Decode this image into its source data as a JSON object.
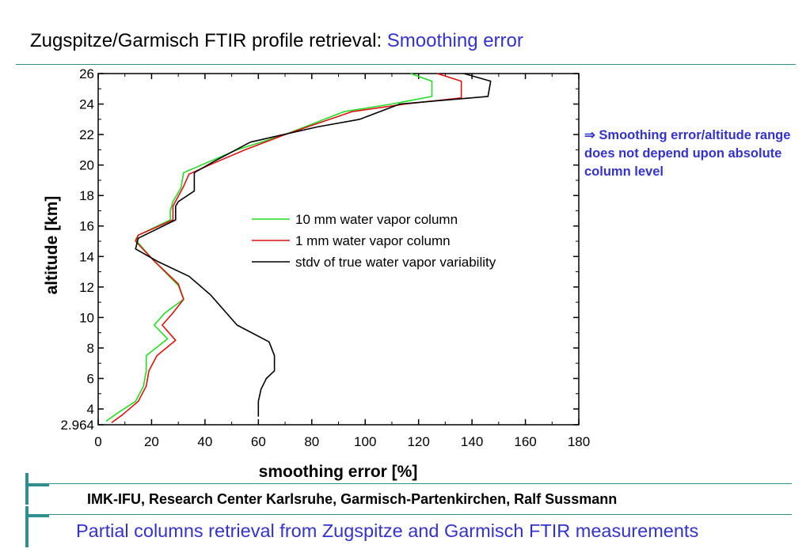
{
  "slide": {
    "title_main": "Zugspitze/Garmisch FTIR profile retrieval: ",
    "title_accent": "Smoothing error",
    "note": "⇒ Smoothing error/altitude range does not depend upon absolute column level",
    "footer_institute": "IMK-IFU, Research Center Karlsruhe, Garmisch-Partenkirchen, Ralf Sussmann",
    "footer_subtitle": "Partial columns retrieval from Zugspitze and Garmisch FTIR measurements",
    "accent_color": "#3333cc",
    "rule_color": "#2f8f8f"
  },
  "chart_data": {
    "type": "line",
    "title": "",
    "xlabel": "smoothing error [%]",
    "ylabel": "altitude [km]",
    "xlim": [
      0,
      180
    ],
    "ylim": [
      2.964,
      26
    ],
    "xticks": [
      "0",
      "20",
      "40",
      "60",
      "80",
      "100",
      "120",
      "140",
      "160",
      "180"
    ],
    "yticks": [
      "2.964",
      "4",
      "6",
      "8",
      "10",
      "12",
      "14",
      "16",
      "18",
      "20",
      "22",
      "24",
      "26"
    ],
    "grid": false,
    "legend_position": "inside-center",
    "series": [
      {
        "name": "10 mm water vapor column",
        "color": "#22dd22",
        "points": [
          [
            3,
            3.2
          ],
          [
            7,
            3.7
          ],
          [
            14,
            4.5
          ],
          [
            17,
            5.5
          ],
          [
            18,
            6.5
          ],
          [
            18,
            7.5
          ],
          [
            26,
            8.6
          ],
          [
            21,
            9.5
          ],
          [
            25,
            10.3
          ],
          [
            32,
            11.2
          ],
          [
            30,
            12.1
          ],
          [
            21,
            13.7
          ],
          [
            14,
            15.1
          ],
          [
            15,
            15.4
          ],
          [
            27,
            16.4
          ],
          [
            27,
            17
          ],
          [
            28,
            17.6
          ],
          [
            31,
            18.5
          ],
          [
            32,
            19.5
          ],
          [
            40,
            20.1
          ],
          [
            52,
            21
          ],
          [
            70,
            22
          ],
          [
            92,
            23.5
          ],
          [
            110,
            24
          ],
          [
            125,
            24.5
          ],
          [
            125,
            25.5
          ],
          [
            117,
            26
          ]
        ]
      },
      {
        "name": "1 mm water vapor column",
        "color": "#dd1111",
        "points": [
          [
            5,
            3.1
          ],
          [
            9,
            3.6
          ],
          [
            15,
            4.5
          ],
          [
            18,
            5.5
          ],
          [
            19,
            6.5
          ],
          [
            22,
            7.5
          ],
          [
            29,
            8.5
          ],
          [
            24,
            9.5
          ],
          [
            28,
            10.3
          ],
          [
            32,
            11.2
          ],
          [
            30,
            12.2
          ],
          [
            21,
            13.7
          ],
          [
            14,
            15
          ],
          [
            15,
            15.4
          ],
          [
            28,
            16.4
          ],
          [
            28,
            17.3
          ],
          [
            32,
            18.6
          ],
          [
            34,
            19.4
          ],
          [
            43,
            20.1
          ],
          [
            55,
            21
          ],
          [
            70,
            22
          ],
          [
            95,
            23.5
          ],
          [
            115,
            24
          ],
          [
            136,
            24.4
          ],
          [
            136,
            25.5
          ],
          [
            127,
            26
          ]
        ]
      },
      {
        "name": "stdv of true water vapor variability",
        "color": "#000000",
        "points": [
          [
            60,
            3.5
          ],
          [
            60,
            4.5
          ],
          [
            61,
            5.3
          ],
          [
            63,
            6
          ],
          [
            66,
            6.5
          ],
          [
            66,
            7.5
          ],
          [
            64,
            8.4
          ],
          [
            52,
            9.5
          ],
          [
            42,
            11.5
          ],
          [
            34,
            12.7
          ],
          [
            22,
            13.7
          ],
          [
            14,
            14.5
          ],
          [
            15,
            15.2
          ],
          [
            29,
            16.4
          ],
          [
            29,
            17.3
          ],
          [
            30,
            17.6
          ],
          [
            36,
            18.3
          ],
          [
            36,
            19.5
          ],
          [
            43,
            20.2
          ],
          [
            57,
            21.5
          ],
          [
            82,
            22.5
          ],
          [
            98,
            23
          ],
          [
            113,
            24
          ],
          [
            146,
            24.5
          ],
          [
            147,
            25.5
          ],
          [
            137,
            26
          ]
        ]
      }
    ]
  }
}
